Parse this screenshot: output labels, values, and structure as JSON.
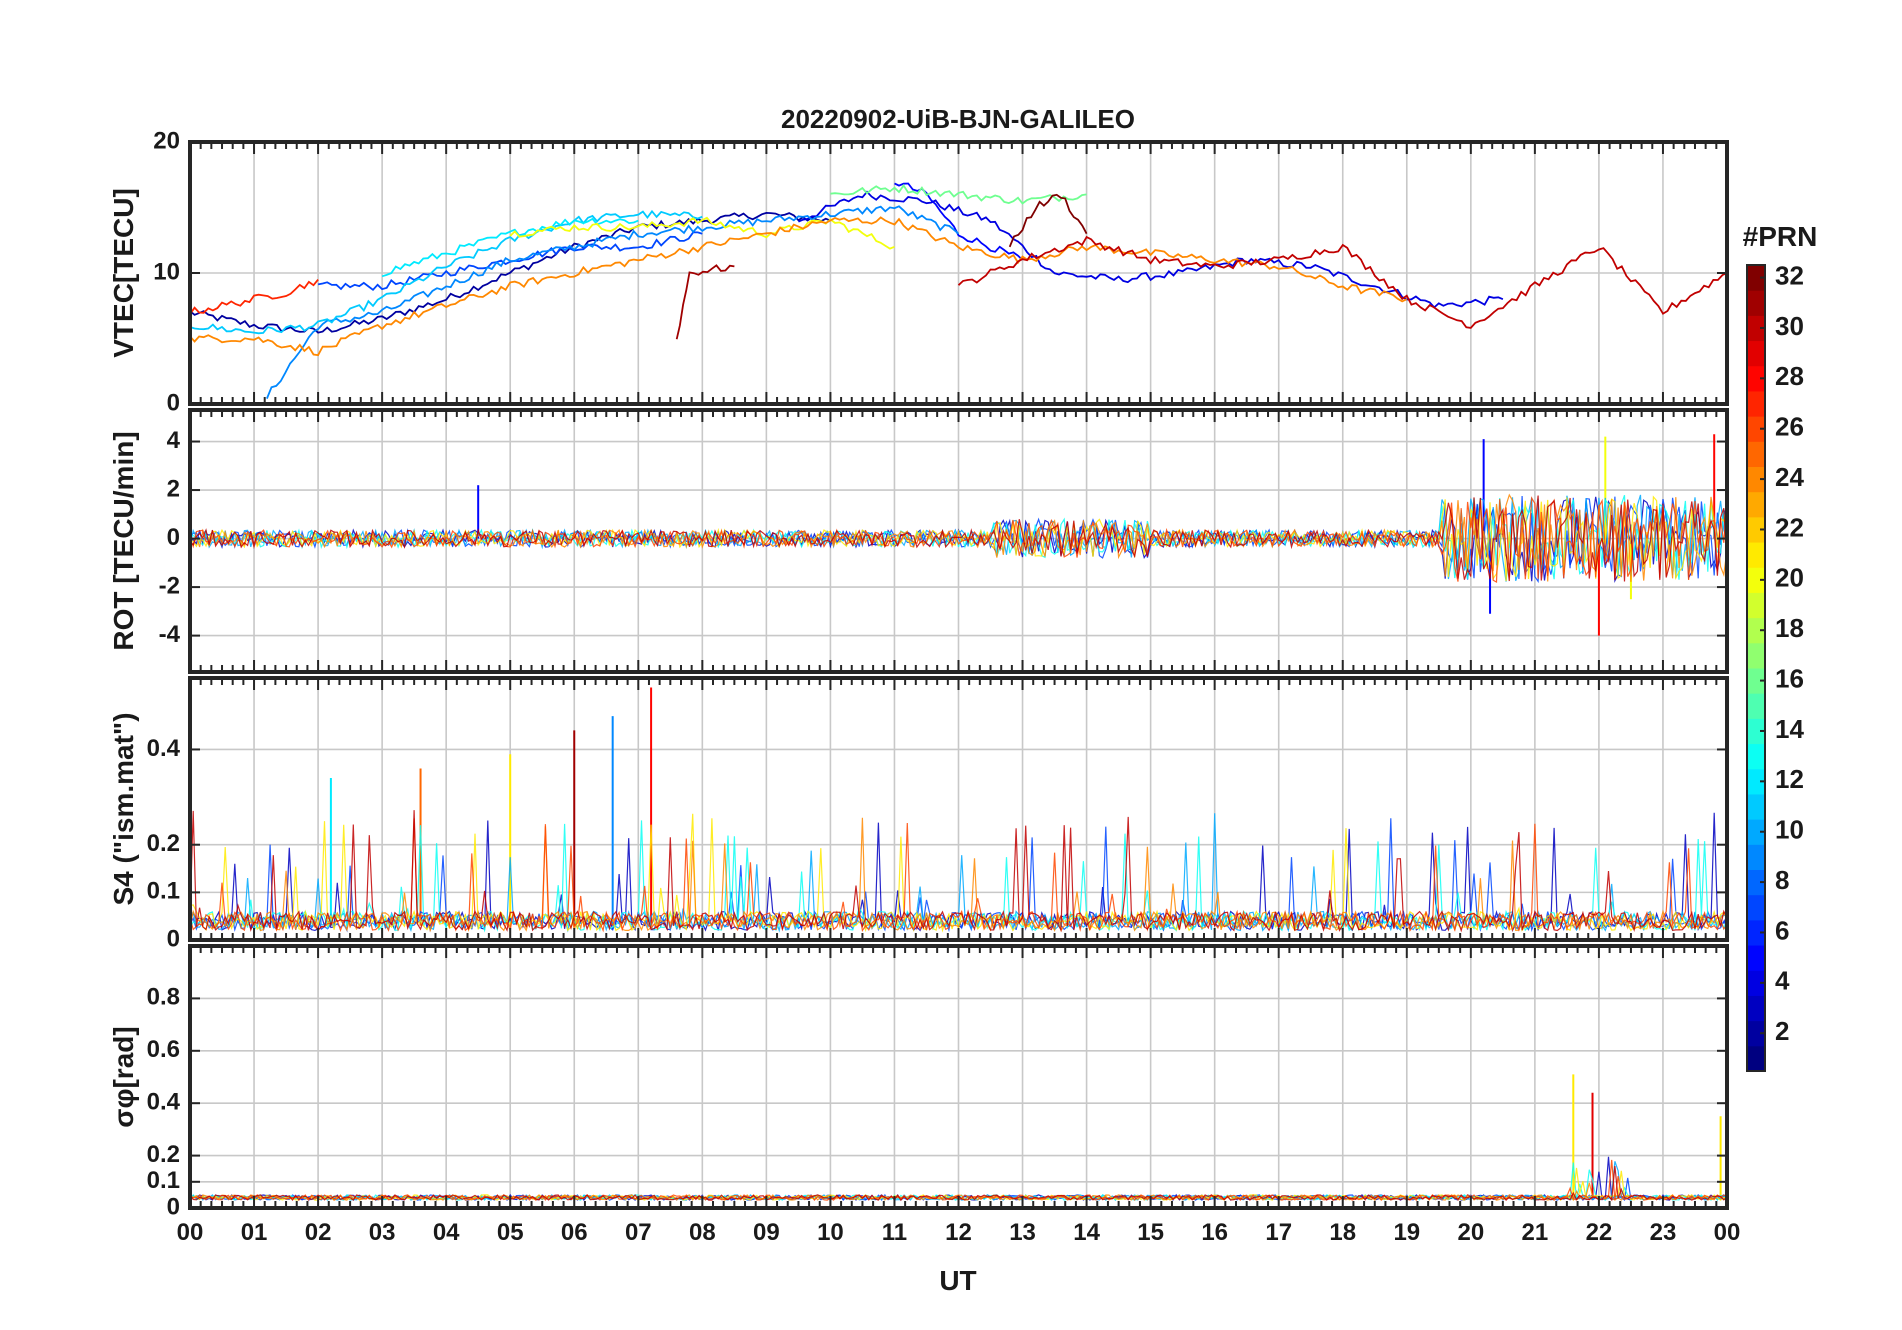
{
  "chart_data": {
    "type": "line",
    "title": "20220902-UiB-BJN-GALILEO",
    "xlabel": "UT",
    "x_ticks": [
      "00",
      "01",
      "02",
      "03",
      "04",
      "05",
      "06",
      "07",
      "08",
      "09",
      "10",
      "11",
      "12",
      "13",
      "14",
      "15",
      "16",
      "17",
      "18",
      "19",
      "20",
      "21",
      "22",
      "23",
      "00"
    ],
    "xlim": [
      0,
      24
    ],
    "colorbar": {
      "label": "#PRN",
      "colormap": "jet",
      "range": [
        1,
        32
      ],
      "ticks": [
        "2",
        "4",
        "6",
        "8",
        "10",
        "12",
        "14",
        "16",
        "18",
        "20",
        "22",
        "24",
        "26",
        "28",
        "30",
        "32"
      ]
    },
    "panels": [
      {
        "id": "vtec",
        "ylabel": "VTEC[TECU]",
        "ylim": [
          0,
          20
        ],
        "yticks": [
          "0",
          "10",
          "20"
        ],
        "series": [
          {
            "prn": 2,
            "x": [
              0,
              1,
              2,
              3,
              4,
              5,
              6,
              7,
              8,
              9,
              10
            ],
            "values": [
              7,
              6,
              5.5,
              6.5,
              8,
              10,
              12,
              13.5,
              14,
              14.5,
              14
            ]
          },
          {
            "prn": 4,
            "x": [
              9.5,
              10.5,
              11.5,
              12.5,
              13.5,
              14.5,
              15.5,
              16.5,
              17.5,
              18.5,
              19.5,
              20.5
            ],
            "values": [
              14,
              16,
              15.5,
              14,
              10,
              9.5,
              10,
              11,
              10.5,
              9,
              7.5,
              8
            ]
          },
          {
            "prn": 5,
            "x": [
              11,
              11.5,
              12,
              12.5,
              13
            ],
            "values": [
              17,
              16,
              13,
              12,
              11
            ]
          },
          {
            "prn": 7,
            "x": [
              2,
              3,
              4,
              5,
              6,
              7,
              8
            ],
            "values": [
              9,
              9,
              10,
              11,
              12,
              12,
              13
            ]
          },
          {
            "prn": 9,
            "x": [
              1.2,
              2,
              3,
              4,
              5,
              6,
              7,
              8,
              9,
              10,
              11,
              12
            ],
            "values": [
              0.5,
              6,
              7,
              9,
              11,
              12,
              13,
              13.5,
              14,
              14.5,
              15,
              13
            ]
          },
          {
            "prn": 11,
            "x": [
              0,
              1,
              2,
              3,
              4,
              5,
              6,
              7,
              8
            ],
            "values": [
              6,
              5.5,
              6,
              8,
              10.5,
              12.5,
              14,
              14.5,
              14.3
            ]
          },
          {
            "prn": 12,
            "x": [
              3,
              4,
              5,
              6,
              7
            ],
            "values": [
              10,
              11.5,
              13,
              14,
              14
            ]
          },
          {
            "prn": 16,
            "x": [
              10,
              11,
              12,
              13,
              14
            ],
            "values": [
              16,
              16.5,
              16,
              15.5,
              16
            ]
          },
          {
            "prn": 20,
            "x": [
              5,
              6,
              7,
              8,
              9,
              10,
              11
            ],
            "values": [
              13,
              13.5,
              13.5,
              14,
              13,
              14,
              12
            ]
          },
          {
            "prn": 24,
            "x": [
              0,
              1,
              2,
              3,
              4,
              5,
              6,
              7,
              8,
              9,
              10,
              11,
              12,
              13,
              14,
              15,
              16,
              17,
              18,
              19
            ],
            "values": [
              5,
              5,
              4,
              6,
              7.5,
              9,
              10,
              11,
              12,
              13,
              14,
              14,
              12,
              11,
              12,
              11.5,
              11,
              10.5,
              9,
              8
            ]
          },
          {
            "prn": 27,
            "x": [
              0,
              0.5,
              1,
              1.5,
              2
            ],
            "values": [
              7,
              7.5,
              8,
              8.5,
              9.5
            ]
          },
          {
            "prn": 30,
            "x": [
              12,
              13,
              14,
              15,
              16,
              17,
              18,
              19,
              20,
              21,
              22,
              23,
              24
            ],
            "values": [
              9,
              11,
              12.5,
              11,
              10.5,
              11,
              12,
              8,
              6,
              9,
              12,
              7,
              10
            ]
          },
          {
            "prn": 31,
            "x": [
              7.6,
              7.8,
              8.5
            ],
            "values": [
              5,
              10,
              10.5
            ]
          },
          {
            "prn": 32,
            "x": [
              12.8,
              13.2,
              13.6,
              14
            ],
            "values": [
              12,
              15,
              16,
              13
            ]
          }
        ]
      },
      {
        "id": "rot",
        "ylabel": "ROT [TECU/min]",
        "ylim": [
          -5.5,
          5.3
        ],
        "yticks": [
          "-4",
          "-2",
          "0",
          "2",
          "4"
        ],
        "series": [
          {
            "prn": 5,
            "x": [
              4.5,
              20.2,
              20.3
            ],
            "values": [
              2.2,
              4.1,
              -3.1
            ]
          },
          {
            "prn": 20,
            "x": [
              22.1,
              22.5
            ],
            "values": [
              4.2,
              -2.5
            ]
          },
          {
            "prn": 28,
            "x": [
              23.8,
              22.0
            ],
            "values": [
              4.3,
              -4.0
            ]
          }
        ]
      },
      {
        "id": "s4",
        "ylabel": "S4 (\"ism.mat\")",
        "ylim": [
          0,
          0.55
        ],
        "yticks": [
          "0",
          "0.1",
          "0.2",
          "0.4"
        ],
        "series": [
          {
            "prn": 28,
            "x": [
              7.2
            ],
            "values": [
              0.53
            ]
          },
          {
            "prn": 9,
            "x": [
              6.6
            ],
            "values": [
              0.47
            ]
          },
          {
            "prn": 31,
            "x": [
              6.0
            ],
            "values": [
              0.44
            ]
          },
          {
            "prn": 21,
            "x": [
              5.0
            ],
            "values": [
              0.39
            ]
          },
          {
            "prn": 25,
            "x": [
              3.6
            ],
            "values": [
              0.36
            ]
          },
          {
            "prn": 12,
            "x": [
              2.2
            ],
            "values": [
              0.34
            ]
          }
        ]
      },
      {
        "id": "sigma",
        "ylabel": "σφ[rad]",
        "ylim": [
          0,
          1.0
        ],
        "yticks": [
          "0",
          "0.1",
          "0.2",
          "0.4",
          "0.6",
          "0.8"
        ],
        "series": [
          {
            "prn": 21,
            "x": [
              21.6
            ],
            "values": [
              0.51
            ]
          },
          {
            "prn": 29,
            "x": [
              21.9
            ],
            "values": [
              0.44
            ]
          },
          {
            "prn": 21,
            "x": [
              23.9
            ],
            "values": [
              0.35
            ]
          }
        ]
      }
    ]
  }
}
